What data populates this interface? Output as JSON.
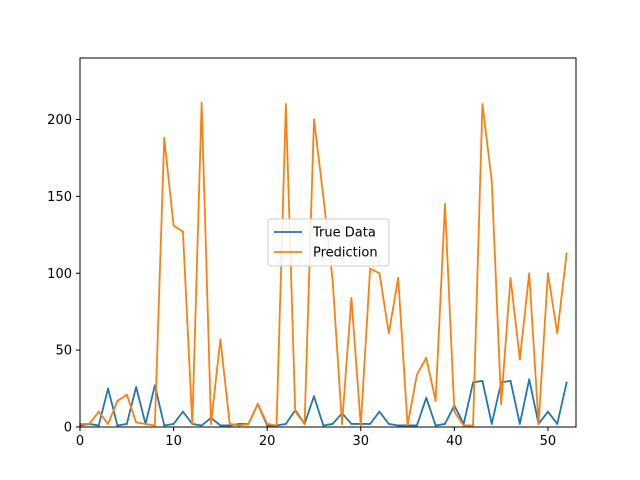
{
  "chart_data": {
    "type": "line",
    "title": "",
    "xlabel": "",
    "ylabel": "",
    "xlim": [
      0,
      53
    ],
    "ylim": [
      0,
      240
    ],
    "x_ticks": [
      0,
      10,
      20,
      30,
      40,
      50
    ],
    "y_ticks": [
      0,
      50,
      100,
      150,
      200
    ],
    "grid": false,
    "legend_placement": "center",
    "x": [
      0,
      1,
      2,
      3,
      4,
      5,
      6,
      7,
      8,
      9,
      10,
      11,
      12,
      13,
      14,
      15,
      16,
      17,
      18,
      19,
      20,
      21,
      22,
      23,
      24,
      25,
      26,
      27,
      28,
      29,
      30,
      31,
      32,
      33,
      34,
      35,
      36,
      37,
      38,
      39,
      40,
      41,
      42,
      43,
      44,
      45,
      46,
      47,
      48,
      49,
      50,
      51,
      52
    ],
    "series": [
      {
        "name": "True Data",
        "color": "#1f77b4",
        "values": [
          1,
          2,
          1,
          25,
          1,
          2,
          26,
          2,
          27,
          1,
          2,
          10,
          2,
          1,
          6,
          1,
          1,
          2,
          2,
          15,
          1,
          1,
          2,
          11,
          2,
          20,
          1,
          2,
          9,
          2,
          2,
          2,
          10,
          2,
          1,
          1,
          1,
          19,
          1,
          2,
          14,
          2,
          29,
          30,
          2,
          29,
          30,
          2,
          31,
          2,
          10,
          2,
          29
        ]
      },
      {
        "name": "Prediction",
        "color": "#ff7f0e",
        "values": [
          2,
          2,
          10,
          2,
          17,
          21,
          3,
          2,
          1,
          188,
          131,
          127,
          2,
          211,
          2,
          57,
          2,
          1,
          2,
          15,
          2,
          1,
          210,
          10,
          2,
          200,
          150,
          95,
          2,
          84,
          1,
          103,
          100,
          61,
          97,
          1,
          34,
          45,
          17,
          145,
          10,
          1,
          1,
          210,
          160,
          15,
          97,
          44,
          100,
          2,
          100,
          61,
          113
        ]
      }
    ]
  }
}
